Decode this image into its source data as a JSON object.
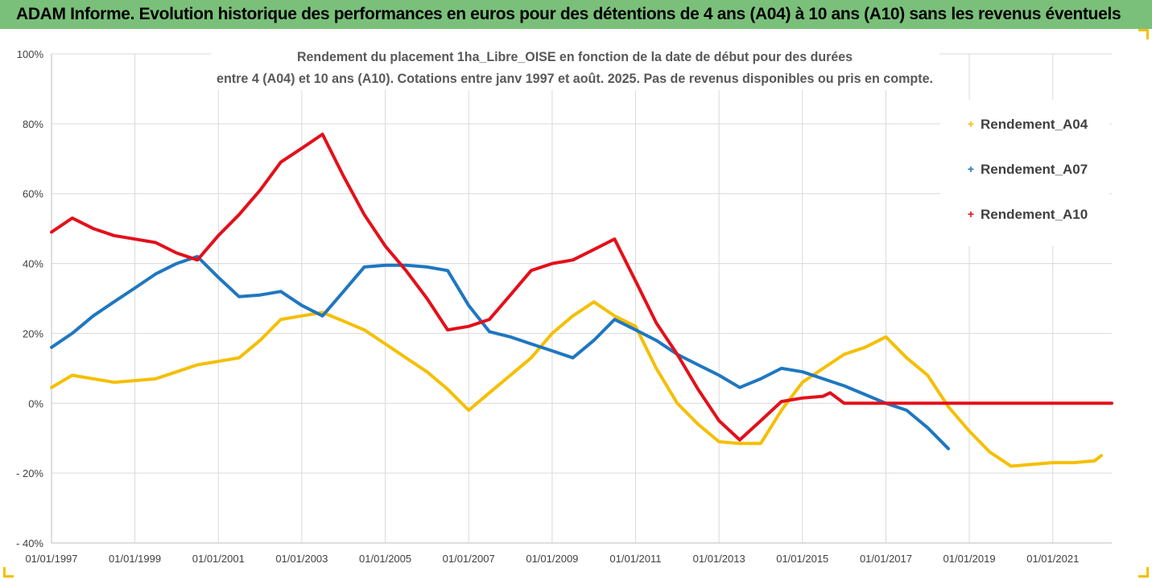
{
  "banner": {
    "title": "ADAM Informe. Evolution historique des performances en euros pour des détentions de 4 ans (A04) à 10 ans (A10) sans les revenus éventuels"
  },
  "colors": {
    "banner_bg": "#7ac07a",
    "A04": "#f5bf00",
    "A07": "#1f77c0",
    "A10": "#e3101a",
    "corner_accent": "#f5bf00"
  },
  "chart_data": {
    "type": "line",
    "title_lines": [
      "Rendement du placement 1ha_Libre_OISE en fonction de la date de début pour des durées",
      "entre 4 (A04) et 10 ans (A10). Cotations entre janv 1997 et août. 2025. Pas de revenus disponibles ou pris en compte."
    ],
    "xlabel": "",
    "ylabel": "",
    "x_range": [
      "1997-01-01",
      "2022-06-01"
    ],
    "x_ticks": [
      "01/01/1997",
      "01/01/1999",
      "01/01/2001",
      "01/01/2003",
      "01/01/2005",
      "01/01/2007",
      "01/01/2009",
      "01/01/2011",
      "01/01/2013",
      "01/01/2015",
      "01/01/2017",
      "01/01/2019",
      "01/01/2021"
    ],
    "y_range": [
      -40,
      100
    ],
    "y_ticks": [
      "- 40%",
      "- 20%",
      "0%",
      "20%",
      "40%",
      "60%",
      "80%",
      "100%"
    ],
    "grid": true,
    "legend_position": "top-right",
    "series": [
      {
        "name": "Rendement_A04",
        "x": [
          "1997-01-01",
          "1997-07-01",
          "1998-01-01",
          "1998-07-01",
          "1999-01-01",
          "1999-07-01",
          "2000-01-01",
          "2000-07-01",
          "2001-01-01",
          "2001-07-01",
          "2002-01-01",
          "2002-07-01",
          "2003-01-01",
          "2003-07-01",
          "2004-01-01",
          "2004-07-01",
          "2005-01-01",
          "2005-07-01",
          "2006-01-01",
          "2006-07-01",
          "2007-01-01",
          "2007-07-01",
          "2008-01-01",
          "2008-07-01",
          "2009-01-01",
          "2009-07-01",
          "2010-01-01",
          "2010-07-01",
          "2011-01-01",
          "2011-07-01",
          "2012-01-01",
          "2012-07-01",
          "2013-01-01",
          "2013-07-01",
          "2014-01-01",
          "2014-07-01",
          "2015-01-01",
          "2015-07-01",
          "2016-01-01",
          "2016-07-01",
          "2017-01-01",
          "2017-07-01",
          "2018-01-01",
          "2018-07-01",
          "2019-01-01",
          "2019-07-01",
          "2020-01-01",
          "2020-07-01",
          "2021-01-01",
          "2021-07-01",
          "2022-01-01",
          "2022-03-01"
        ],
        "values": [
          4.5,
          8,
          7,
          6,
          6.5,
          7,
          9,
          11,
          12,
          13,
          18,
          24,
          25,
          26,
          23.5,
          21,
          17,
          13,
          9,
          4,
          -2,
          3,
          8,
          13,
          20,
          25,
          29,
          25,
          22,
          10,
          0,
          -6,
          -11,
          -11.5,
          -11.5,
          -2,
          6,
          10,
          14,
          16,
          19,
          13,
          8,
          -1,
          -8,
          -14,
          -18,
          -17.5,
          -17,
          -17,
          -16.5,
          -15
        ]
      },
      {
        "name": "Rendement_A07",
        "x": [
          "1997-01-01",
          "1997-07-01",
          "1998-01-01",
          "1998-07-01",
          "1999-01-01",
          "1999-07-01",
          "2000-01-01",
          "2000-07-01",
          "2001-01-01",
          "2001-07-01",
          "2002-01-01",
          "2002-07-01",
          "2003-01-01",
          "2003-07-01",
          "2004-01-01",
          "2004-07-01",
          "2005-01-01",
          "2005-07-01",
          "2006-01-01",
          "2006-07-01",
          "2007-01-01",
          "2007-07-01",
          "2008-01-01",
          "2008-07-01",
          "2009-01-01",
          "2009-07-01",
          "2010-01-01",
          "2010-07-01",
          "2011-01-01",
          "2011-07-01",
          "2012-01-01",
          "2012-07-01",
          "2013-01-01",
          "2013-07-01",
          "2014-01-01",
          "2014-07-01",
          "2015-01-01",
          "2015-07-01",
          "2016-01-01",
          "2016-07-01",
          "2017-01-01",
          "2017-07-01",
          "2018-01-01",
          "2018-07-01"
        ],
        "values": [
          16,
          20,
          25,
          29,
          33,
          37,
          40,
          42,
          36,
          30.5,
          31,
          32,
          28,
          25,
          32,
          39,
          39.5,
          39.5,
          39,
          38,
          28,
          20.5,
          19,
          17,
          15,
          13,
          18,
          24,
          21,
          18,
          14,
          11,
          8,
          4.5,
          7,
          10,
          9,
          7,
          5,
          2.5,
          0,
          -2,
          -7,
          -13
        ]
      },
      {
        "name": "Rendement_A10",
        "x": [
          "1997-01-01",
          "1997-07-01",
          "1998-01-01",
          "1998-07-01",
          "1999-01-01",
          "1999-07-01",
          "2000-01-01",
          "2000-07-01",
          "2001-01-01",
          "2001-07-01",
          "2002-01-01",
          "2002-07-01",
          "2003-01-01",
          "2003-07-01",
          "2004-01-01",
          "2004-07-01",
          "2005-01-01",
          "2005-07-01",
          "2006-01-01",
          "2006-07-01",
          "2007-01-01",
          "2007-07-01",
          "2008-01-01",
          "2008-07-01",
          "2009-01-01",
          "2009-07-01",
          "2010-01-01",
          "2010-07-01",
          "2011-01-01",
          "2011-07-01",
          "2012-01-01",
          "2012-07-01",
          "2013-01-01",
          "2013-07-01",
          "2014-01-01",
          "2014-07-01",
          "2015-01-01",
          "2015-07-01",
          "2015-09-01",
          "2016-01-01",
          "2016-07-01",
          "2017-01-01",
          "2017-07-01",
          "2018-01-01",
          "2018-07-01",
          "2019-01-01",
          "2019-07-01",
          "2020-01-01",
          "2020-07-01",
          "2021-01-01",
          "2021-07-01",
          "2022-01-01",
          "2022-06-01"
        ],
        "values": [
          49,
          53,
          50,
          48,
          47,
          46,
          43,
          41,
          48,
          54,
          61,
          69,
          73,
          77,
          65,
          54,
          45,
          38,
          30,
          21,
          22,
          24,
          31,
          38,
          40,
          41,
          44,
          47,
          35,
          23,
          14,
          4,
          -5,
          -10.5,
          -5,
          0.5,
          1.5,
          2,
          3,
          0,
          0,
          0,
          0,
          0,
          0,
          0,
          0,
          0,
          0,
          0,
          0,
          0,
          0
        ]
      }
    ]
  }
}
